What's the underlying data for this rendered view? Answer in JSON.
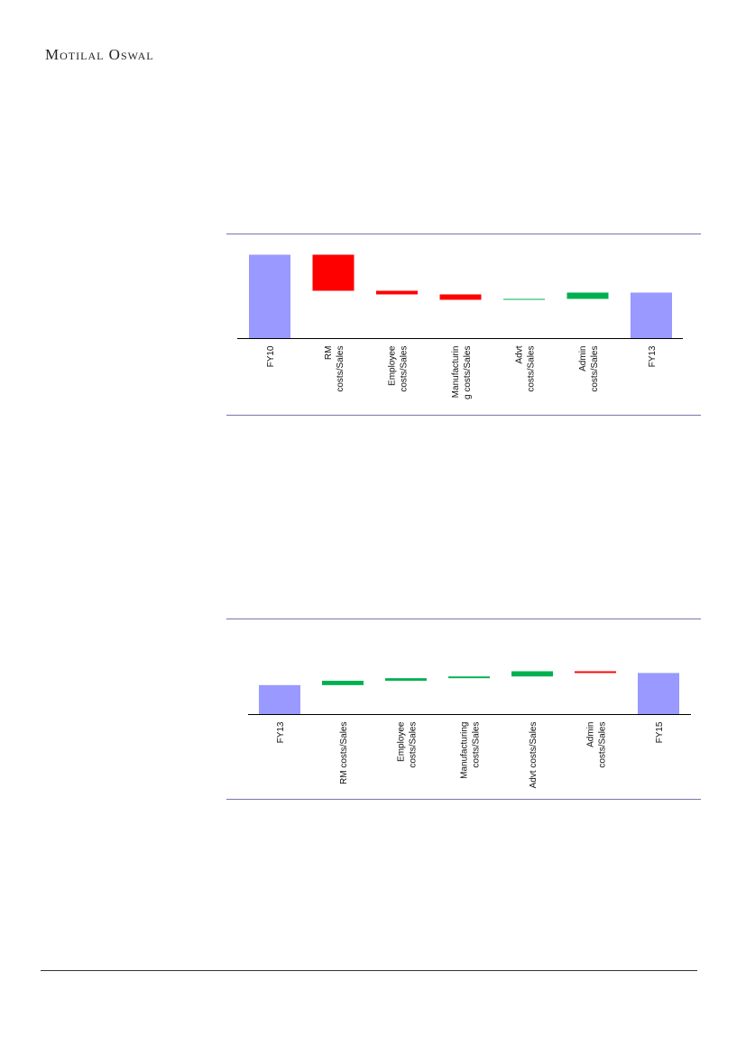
{
  "header": {
    "brand": "Motilal Oswal"
  },
  "chart_data": [
    {
      "type": "waterfall",
      "categories": [
        [
          "FY10"
        ],
        [
          "RM",
          "costs/Sales"
        ],
        [
          "Employee",
          "costs/Sales"
        ],
        [
          "Manufacturin",
          "g costs/Sales"
        ],
        [
          "Advt",
          "costs/Sales"
        ],
        [
          "Admin",
          "costs/Sales"
        ],
        [
          "FY13"
        ]
      ],
      "values": [
        93,
        -40,
        -4,
        -6,
        1,
        7,
        51
      ],
      "colors": {
        "total": "#9999ff",
        "increase": "#00b050",
        "decrease": "#ff0000"
      }
    },
    {
      "type": "waterfall",
      "categories": [
        [
          "FY13"
        ],
        [
          "RM costs/Sales"
        ],
        [
          "Employee",
          "costs/Sales"
        ],
        [
          "Manufacturing",
          "costs/Sales"
        ],
        [
          "Advt costs/Sales"
        ],
        [
          "Admin",
          "costs/Sales"
        ],
        [
          "FY15"
        ]
      ],
      "values": [
        34,
        5,
        3,
        2,
        6,
        -2,
        48
      ],
      "colors": {
        "total": "#9999ff",
        "increase": "#00b050",
        "decrease": "#ff0000"
      }
    }
  ]
}
